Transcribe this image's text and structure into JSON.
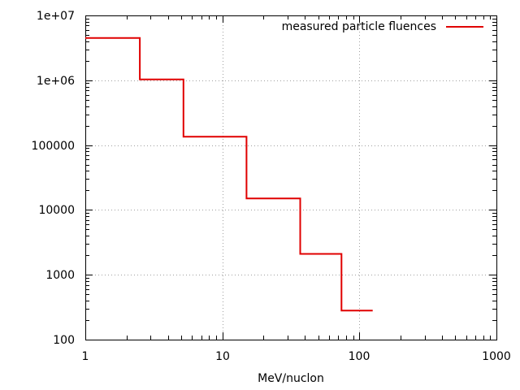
{
  "chart_data": {
    "type": "line",
    "title": "",
    "xlabel": "MeV/nuclon",
    "ylabel": "",
    "x_scale": "log",
    "y_scale": "log",
    "xlim": [
      1,
      1000
    ],
    "ylim": [
      100,
      10000000
    ],
    "grid": true,
    "legend_position": "top-right",
    "x_ticks": [
      "1",
      "10",
      "100",
      "1000"
    ],
    "y_ticks": [
      "100",
      "1000",
      "10000",
      "100000",
      "1e+06",
      "1e+07"
    ],
    "series": [
      {
        "name": "measured particle fluences",
        "color": "#e00000",
        "step": true,
        "points": [
          [
            1,
            4500000
          ],
          [
            2.5,
            4500000
          ],
          [
            2.5,
            1030000
          ],
          [
            5.2,
            1030000
          ],
          [
            5.2,
            135000
          ],
          [
            15,
            135000
          ],
          [
            15,
            15000
          ],
          [
            37,
            15000
          ],
          [
            37,
            2100
          ],
          [
            74,
            2100
          ],
          [
            74,
            280
          ],
          [
            125,
            280
          ]
        ]
      }
    ]
  }
}
